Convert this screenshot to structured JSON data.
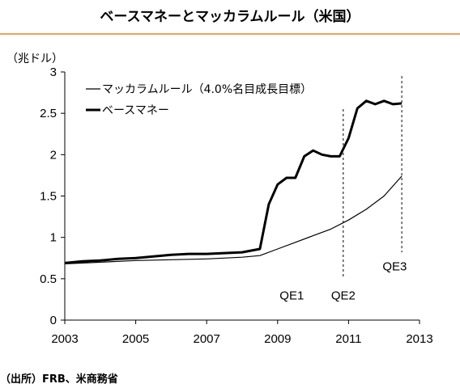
{
  "title": "ベースマネーとマッカラムルール（米国）",
  "colors": {
    "accent_rule": "#f0a060",
    "line": "#000000"
  },
  "chart_data": {
    "type": "line",
    "title": "ベースマネーとマッカラムルール（米国）",
    "unit_label": "（兆ドル）",
    "xlim": [
      2003,
      2013
    ],
    "ylim": [
      0,
      3
    ],
    "x_ticks": [
      "2003",
      "2005",
      "2007",
      "2009",
      "2011",
      "2013"
    ],
    "y_ticks": [
      "0",
      "0.5",
      "1",
      "1.5",
      "2",
      "2.5",
      "3"
    ],
    "grid": false,
    "legend_position": "top-left",
    "series": [
      {
        "name": "マッカラムルール（4.0%名目成長目標）",
        "style": "thin",
        "x": [
          2003.0,
          2004.0,
          2005.0,
          2006.0,
          2007.0,
          2008.0,
          2008.5,
          2009.0,
          2009.5,
          2010.0,
          2010.5,
          2011.0,
          2011.5,
          2012.0,
          2012.5
        ],
        "y": [
          0.68,
          0.7,
          0.72,
          0.73,
          0.74,
          0.76,
          0.78,
          0.86,
          0.94,
          1.02,
          1.1,
          1.21,
          1.34,
          1.5,
          1.74
        ]
      },
      {
        "name": "ベースマネー",
        "style": "thick",
        "x": [
          2003.0,
          2003.5,
          2004.0,
          2004.5,
          2005.0,
          2005.5,
          2006.0,
          2006.5,
          2007.0,
          2007.5,
          2008.0,
          2008.5,
          2008.75,
          2009.0,
          2009.25,
          2009.5,
          2009.75,
          2010.0,
          2010.25,
          2010.5,
          2010.75,
          2011.0,
          2011.25,
          2011.5,
          2011.75,
          2012.0,
          2012.25,
          2012.5
        ],
        "y": [
          0.69,
          0.71,
          0.72,
          0.74,
          0.75,
          0.77,
          0.79,
          0.8,
          0.8,
          0.81,
          0.82,
          0.86,
          1.4,
          1.64,
          1.72,
          1.72,
          1.98,
          2.05,
          2.0,
          1.98,
          1.98,
          2.2,
          2.56,
          2.65,
          2.61,
          2.65,
          2.61,
          2.62
        ]
      }
    ],
    "annotations": [
      {
        "label": "QE1",
        "x": 2009.4,
        "y": 0.3
      },
      {
        "label": "QE2",
        "x": 2010.85,
        "y": 0.3,
        "vline": {
          "x": 2010.85,
          "y_from": 0.5,
          "y_to": 2.55
        }
      },
      {
        "label": "QE3",
        "x": 2012.3,
        "y": 0.65,
        "vline": {
          "x": 2012.5,
          "y_from": 0.82,
          "y_to": 2.95
        }
      }
    ]
  },
  "source": "（出所）FRB、米商務省"
}
